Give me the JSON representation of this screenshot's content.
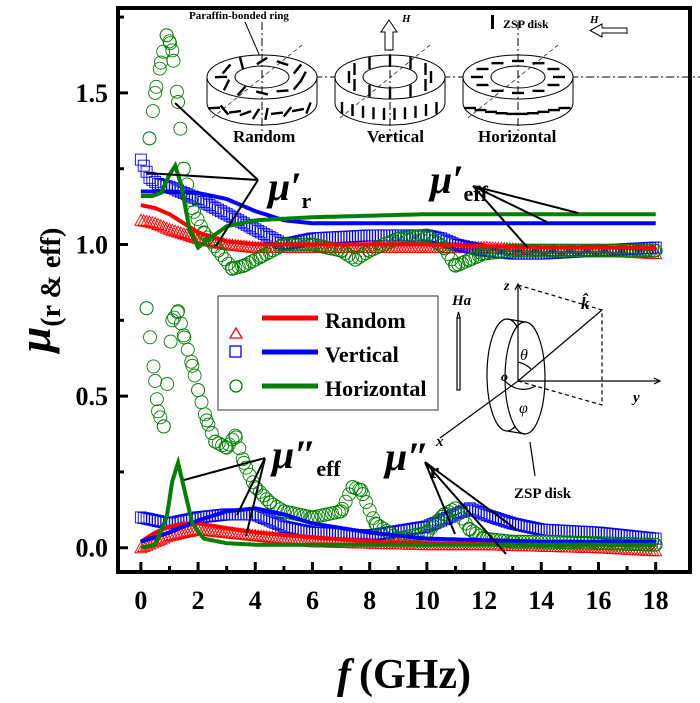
{
  "chart_data": {
    "type": "scatter",
    "xlabel_italic": "f",
    "xlabel_unit": "(GHz)",
    "ylabel_main": "μ",
    "ylabel_sub": "(r & eff)",
    "xlim": [
      -0.8,
      19.2
    ],
    "ylim": [
      -0.08,
      1.78
    ],
    "xticks": [
      "0",
      "2",
      "4",
      "6",
      "8",
      "10",
      "12",
      "14",
      "16",
      "18"
    ],
    "yticks": [
      "0.0",
      "0.5",
      "1.0",
      "1.5"
    ],
    "grid": false,
    "legend": {
      "placement": "center-left",
      "entries": [
        "Random",
        "Vertical",
        "Horizontal"
      ]
    },
    "colors": {
      "Random": "#ff0000",
      "Vertical": "#0000ff",
      "Horizontal": "#008000"
    },
    "series": [
      {
        "name": "Random",
        "kind": "markers",
        "marker": "triangle",
        "quantity": "μ'r",
        "x": [
          0,
          0.5,
          1,
          2,
          3,
          4,
          6,
          8,
          10,
          12,
          14,
          16,
          18
        ],
        "y": [
          1.08,
          1.07,
          1.05,
          1.02,
          1.0,
          0.99,
          0.99,
          0.99,
          0.99,
          0.99,
          0.98,
          0.98,
          0.97
        ]
      },
      {
        "name": "Random",
        "kind": "line",
        "quantity": "μ'eff",
        "x": [
          0,
          0.5,
          1,
          1.5,
          2,
          3,
          4,
          6,
          10,
          14,
          18
        ],
        "y": [
          1.13,
          1.12,
          1.1,
          1.07,
          1.04,
          1.01,
          1.0,
          1.0,
          1.0,
          0.99,
          0.99
        ]
      },
      {
        "name": "Vertical",
        "kind": "markers",
        "marker": "square",
        "quantity": "μ'r",
        "x": [
          0,
          0.3,
          0.6,
          1,
          2,
          3,
          4,
          5,
          6,
          8,
          10,
          10.5,
          11,
          12,
          13,
          14,
          16,
          18
        ],
        "y": [
          1.28,
          1.22,
          1.2,
          1.19,
          1.15,
          1.1,
          1.05,
          1.0,
          1.02,
          1.03,
          1.03,
          1.02,
          1.0,
          0.98,
          0.97,
          0.97,
          0.98,
          0.99
        ]
      },
      {
        "name": "Vertical",
        "kind": "line",
        "quantity": "μ'eff",
        "x": [
          0,
          1,
          2,
          3,
          4,
          5,
          6,
          10,
          14,
          18
        ],
        "y": [
          1.175,
          1.175,
          1.17,
          1.15,
          1.11,
          1.08,
          1.07,
          1.07,
          1.07,
          1.07
        ]
      },
      {
        "name": "Horizontal",
        "kind": "markers",
        "marker": "circle",
        "quantity": "μ'r",
        "x": [
          0.3,
          0.5,
          0.7,
          0.9,
          1.0,
          1.1,
          1.3,
          1.5,
          1.8,
          2.2,
          2.7,
          3.2,
          3.6,
          4.2,
          5,
          6,
          7,
          7.5,
          8,
          9,
          10,
          10.6,
          11,
          11.5,
          12,
          13,
          14,
          16,
          18
        ],
        "y": [
          1.35,
          1.5,
          1.6,
          1.69,
          1.67,
          1.64,
          1.47,
          1.25,
          1.12,
          1.04,
          0.98,
          0.92,
          0.93,
          0.96,
          1.0,
          1.0,
          0.98,
          0.95,
          0.98,
          1.02,
          1.03,
          0.99,
          0.93,
          0.95,
          0.97,
          0.98,
          0.98,
          0.98,
          0.98
        ]
      },
      {
        "name": "Horizontal",
        "kind": "line",
        "quantity": "μ'eff",
        "x": [
          0,
          0.4,
          0.7,
          1.0,
          1.2,
          1.4,
          1.7,
          2.0,
          2.4,
          3,
          4,
          6,
          10,
          14,
          18
        ],
        "y": [
          1.16,
          1.16,
          1.17,
          1.23,
          1.26,
          1.2,
          1.05,
          0.99,
          1.02,
          1.06,
          1.08,
          1.09,
          1.1,
          1.1,
          1.1
        ]
      },
      {
        "name": "Random",
        "kind": "markers",
        "marker": "triangle",
        "quantity": "μ''r",
        "x": [
          0,
          1,
          2,
          3,
          4,
          5,
          6,
          8,
          10,
          12,
          14,
          16,
          18
        ],
        "y": [
          0.0,
          0.04,
          0.06,
          0.05,
          0.04,
          0.03,
          0.02,
          0.015,
          0.01,
          0.01,
          0.005,
          0.0,
          -0.01
        ]
      },
      {
        "name": "Random",
        "kind": "line",
        "quantity": "μ''eff",
        "x": [
          0,
          0.5,
          1,
          1.5,
          2,
          3,
          4,
          6,
          8,
          10,
          14,
          18
        ],
        "y": [
          0.02,
          0.05,
          0.07,
          0.08,
          0.08,
          0.065,
          0.05,
          0.035,
          0.02,
          0.015,
          0.01,
          0.01
        ]
      },
      {
        "name": "Vertical",
        "kind": "markers",
        "marker": "square",
        "quantity": "μ''r",
        "x": [
          0,
          1,
          2,
          3,
          4,
          5,
          6,
          8,
          10,
          11,
          11.5,
          12,
          13,
          14,
          16,
          18
        ],
        "y": [
          0.1,
          0.08,
          0.1,
          0.11,
          0.11,
          0.07,
          0.05,
          0.04,
          0.07,
          0.11,
          0.13,
          0.11,
          0.08,
          0.06,
          0.05,
          0.03
        ]
      },
      {
        "name": "Vertical",
        "kind": "line",
        "quantity": "μ''eff",
        "x": [
          0,
          1,
          2,
          3,
          4,
          5,
          6,
          8,
          10,
          12,
          14,
          18
        ],
        "y": [
          0.02,
          0.05,
          0.09,
          0.12,
          0.13,
          0.11,
          0.08,
          0.05,
          0.03,
          0.025,
          0.02,
          0.02
        ]
      },
      {
        "name": "Horizontal",
        "kind": "markers",
        "marker": "circle",
        "quantity": "μ''r",
        "x": [
          0.2,
          0.5,
          0.6,
          0.8,
          1.1,
          1.3,
          1.5,
          1.8,
          2.0,
          2.3,
          2.6,
          3.0,
          3.3,
          3.6,
          4.0,
          4.5,
          5,
          6,
          7,
          7.4,
          7.7,
          8.2,
          9,
          10,
          10.6,
          11,
          11.5,
          12,
          13,
          14,
          16,
          18
        ],
        "y": [
          0.79,
          0.55,
          0.45,
          0.4,
          0.75,
          0.78,
          0.7,
          0.6,
          0.52,
          0.42,
          0.35,
          0.33,
          0.37,
          0.28,
          0.2,
          0.15,
          0.12,
          0.1,
          0.12,
          0.2,
          0.19,
          0.08,
          0.03,
          0.05,
          0.11,
          0.13,
          0.06,
          0.03,
          0.02,
          0.02,
          0.015,
          0.01
        ]
      },
      {
        "name": "Horizontal",
        "kind": "line",
        "quantity": "μ''eff",
        "x": [
          0,
          0.5,
          0.9,
          1.1,
          1.3,
          1.5,
          1.8,
          2.2,
          3,
          4,
          6,
          10,
          18
        ],
        "y": [
          0.0,
          0.01,
          0.1,
          0.22,
          0.28,
          0.2,
          0.08,
          0.03,
          0.015,
          0.01,
          0.01,
          0.01,
          0.01
        ]
      }
    ],
    "annotations": {
      "mu_r_prime": {
        "base": "μ′",
        "sub": "r"
      },
      "mu_eff_prime": {
        "base": "μ′",
        "sub": "eff"
      },
      "mu_eff_dprime": {
        "base": "μ″",
        "sub": "eff"
      },
      "mu_r_dprime": {
        "base": "μ″",
        "sub": "r"
      }
    },
    "inset_top": {
      "ring_label": "Paraffin-bonded ring",
      "disk_legend": "ZSP disk",
      "field": "H",
      "rings": [
        "Random",
        "Vertical",
        "Horizontal"
      ]
    },
    "inset_axes": {
      "field": "Ha",
      "z": "z",
      "y": "y",
      "x": "x",
      "o": "o",
      "k": "k̂",
      "theta": "θ",
      "phi": "φ",
      "disk": "ZSP disk"
    }
  }
}
